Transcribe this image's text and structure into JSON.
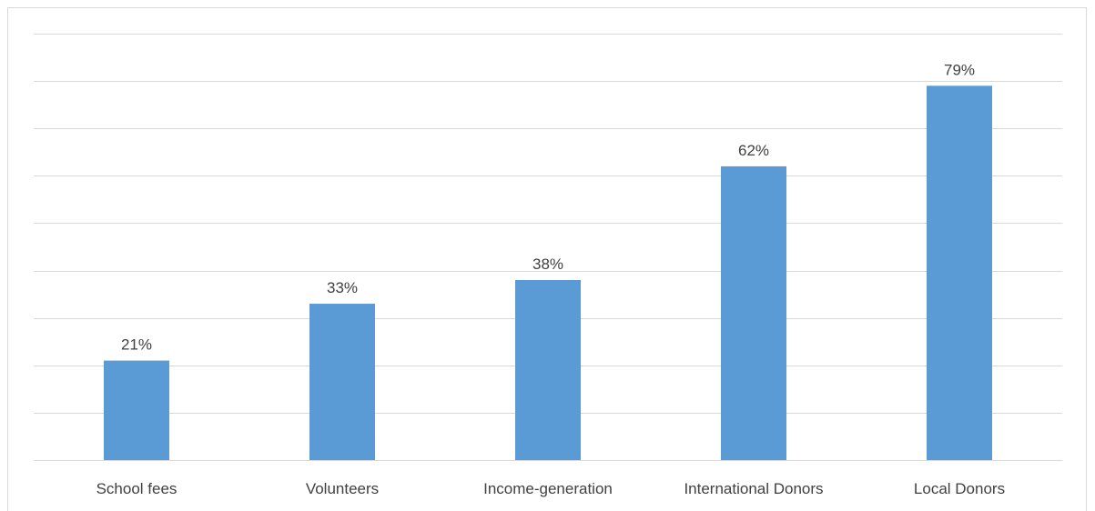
{
  "chart_data": {
    "type": "bar",
    "categories": [
      "School fees",
      "Volunteers",
      "Income-generation",
      "International Donors",
      "Local Donors"
    ],
    "values": [
      21,
      33,
      38,
      62,
      79
    ],
    "value_labels": [
      "21%",
      "33%",
      "38%",
      "62%",
      "79%"
    ],
    "ylim": [
      0,
      90
    ],
    "y_gridlines": [
      0,
      10,
      20,
      30,
      40,
      50,
      60,
      70,
      80,
      90
    ],
    "grid": true,
    "legend": "none",
    "bar_color": "#5b9bd5",
    "gridline_color": "#d9d9d9",
    "text_color": "#404040"
  }
}
